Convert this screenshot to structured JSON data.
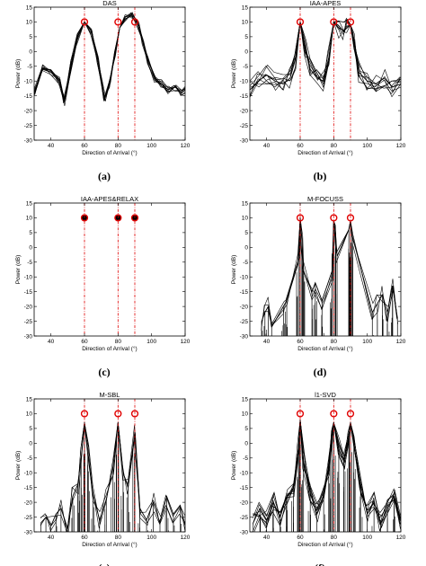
{
  "figure": {
    "xlabel": "Direction of Arrival (°)",
    "ylabel": "Power (dB)",
    "xlim": [
      30,
      120
    ],
    "ylim": [
      -30,
      15
    ],
    "xticks": [
      40,
      60,
      80,
      100,
      120
    ],
    "yticks": [
      15,
      10,
      5,
      0,
      -5,
      -10,
      -15,
      -20,
      -25,
      -30
    ],
    "true_doas": [
      60,
      80,
      90
    ],
    "true_power_db": 10,
    "colors": {
      "curve": "#000000",
      "doa_line": "#e00000",
      "marker": "#e00000",
      "axes": "#000000"
    }
  },
  "chart_data": [
    {
      "type": "line",
      "title": "DAS",
      "caption": "(a)",
      "xlabel": "Direction of Arrival (°)",
      "ylabel": "Power (dB)",
      "xlim": [
        30,
        120
      ],
      "ylim": [
        -30,
        15
      ],
      "true_doas": [
        60,
        80,
        90
      ],
      "marker_y": 10,
      "series": [
        {
          "x": [
            30,
            35,
            40,
            45,
            48,
            52,
            56,
            60,
            64,
            68,
            72,
            75,
            78,
            81,
            84,
            88,
            92,
            95,
            98,
            102,
            106,
            110,
            114,
            118,
            120
          ],
          "y": [
            -14,
            -6,
            -7,
            -10,
            -17,
            -4,
            5,
            10,
            7,
            -3,
            -16,
            -11,
            -1,
            8,
            11,
            12,
            9,
            3,
            -3,
            -9,
            -11,
            -13,
            -12,
            -14,
            -13
          ]
        }
      ]
    },
    {
      "type": "line",
      "title": "IAA-APES",
      "caption": "(b)",
      "xlabel": "Direction of Arrival (°)",
      "ylabel": "Power (dB)",
      "xlim": [
        30,
        120
      ],
      "ylim": [
        -30,
        15
      ],
      "true_doas": [
        60,
        80,
        90
      ],
      "marker_y": 10,
      "series": [
        {
          "x": [
            30,
            35,
            40,
            45,
            50,
            54,
            57,
            60,
            63,
            66,
            70,
            74,
            77,
            80,
            83,
            86,
            88,
            90,
            92,
            95,
            100,
            105,
            110,
            115,
            120
          ],
          "y": [
            -13,
            -10,
            -8,
            -10,
            -11,
            -9,
            -3,
            10,
            1,
            -6,
            -9,
            -10,
            -3,
            10,
            8,
            7,
            8,
            9,
            3,
            -7,
            -10,
            -11,
            -9,
            -12,
            -11
          ]
        }
      ]
    },
    {
      "type": "scatter",
      "title": "IAA-APES&RELAX",
      "caption": "(c)",
      "xlabel": "Direction of Arrival (°)",
      "ylabel": "Power (dB)",
      "xlim": [
        30,
        120
      ],
      "ylim": [
        -30,
        15
      ],
      "true_doas": [
        60,
        80,
        90
      ],
      "marker_y": 10,
      "series": [
        {
          "x": [
            60,
            80,
            90
          ],
          "y": [
            10,
            10,
            10
          ]
        }
      ]
    },
    {
      "type": "line",
      "title": "M-FOCUSS",
      "caption": "(d)",
      "xlabel": "Direction of Arrival (°)",
      "ylabel": "Power (dB)",
      "xlim": [
        30,
        120
      ],
      "ylim": [
        -30,
        15
      ],
      "true_doas": [
        60,
        80,
        90
      ],
      "marker_y": 10,
      "series": [
        {
          "x": [
            37,
            39,
            41,
            43,
            50,
            52,
            59,
            60,
            61,
            62,
            67,
            69,
            73,
            79,
            80,
            81,
            82,
            89,
            90,
            91,
            103,
            106,
            109,
            112,
            115,
            118
          ],
          "y": [
            -25,
            -22,
            -20,
            -27,
            -20,
            -18,
            -5,
            10,
            3,
            -8,
            -15,
            -12,
            -18,
            -8,
            9,
            5,
            -3,
            6,
            9,
            4,
            -22,
            -19,
            -16,
            -22,
            -13,
            -24
          ]
        }
      ]
    },
    {
      "type": "line",
      "title": "M-SBL",
      "caption": "(e)",
      "xlabel": "Direction of Arrival (°)",
      "ylabel": "Power (dB)",
      "xlim": [
        30,
        120
      ],
      "ylim": [
        -30,
        15
      ],
      "true_doas": [
        60,
        80,
        90
      ],
      "marker_y": 10,
      "series": [
        {
          "x": [
            34,
            37,
            40,
            43,
            46,
            50,
            53,
            56,
            58,
            60,
            62,
            65,
            69,
            73,
            77,
            80,
            83,
            86,
            90,
            93,
            97,
            101,
            105,
            109,
            113,
            117,
            120
          ],
          "y": [
            -27,
            -25,
            -28,
            -24,
            -22,
            -29,
            -18,
            -14,
            -5,
            7,
            -4,
            -17,
            -26,
            -19,
            -8,
            7,
            -10,
            -15,
            4,
            -22,
            -26,
            -20,
            -27,
            -18,
            -24,
            -21,
            -28
          ]
        }
      ]
    },
    {
      "type": "line",
      "title": "l1-SVD",
      "caption": "(f)",
      "xlabel": "Direction of Arrival (°)",
      "ylabel": "Power (dB)",
      "xlim": [
        30,
        120
      ],
      "ylim": [
        -30,
        15
      ],
      "true_doas": [
        60,
        80,
        90
      ],
      "marker_y": 10,
      "series": [
        {
          "x": [
            32,
            36,
            40,
            44,
            48,
            52,
            56,
            59,
            60,
            62,
            66,
            70,
            74,
            77,
            79,
            80,
            83,
            86,
            89,
            90,
            92,
            96,
            100,
            104,
            108,
            112,
            116,
            120
          ],
          "y": [
            -27,
            -22,
            -26,
            -20,
            -25,
            -18,
            -15,
            -2,
            8,
            -6,
            -17,
            -24,
            -19,
            -8,
            2,
            7,
            -2,
            -6,
            2,
            7,
            -1,
            -14,
            -24,
            -20,
            -27,
            -22,
            -18,
            -26
          ]
        }
      ]
    }
  ]
}
